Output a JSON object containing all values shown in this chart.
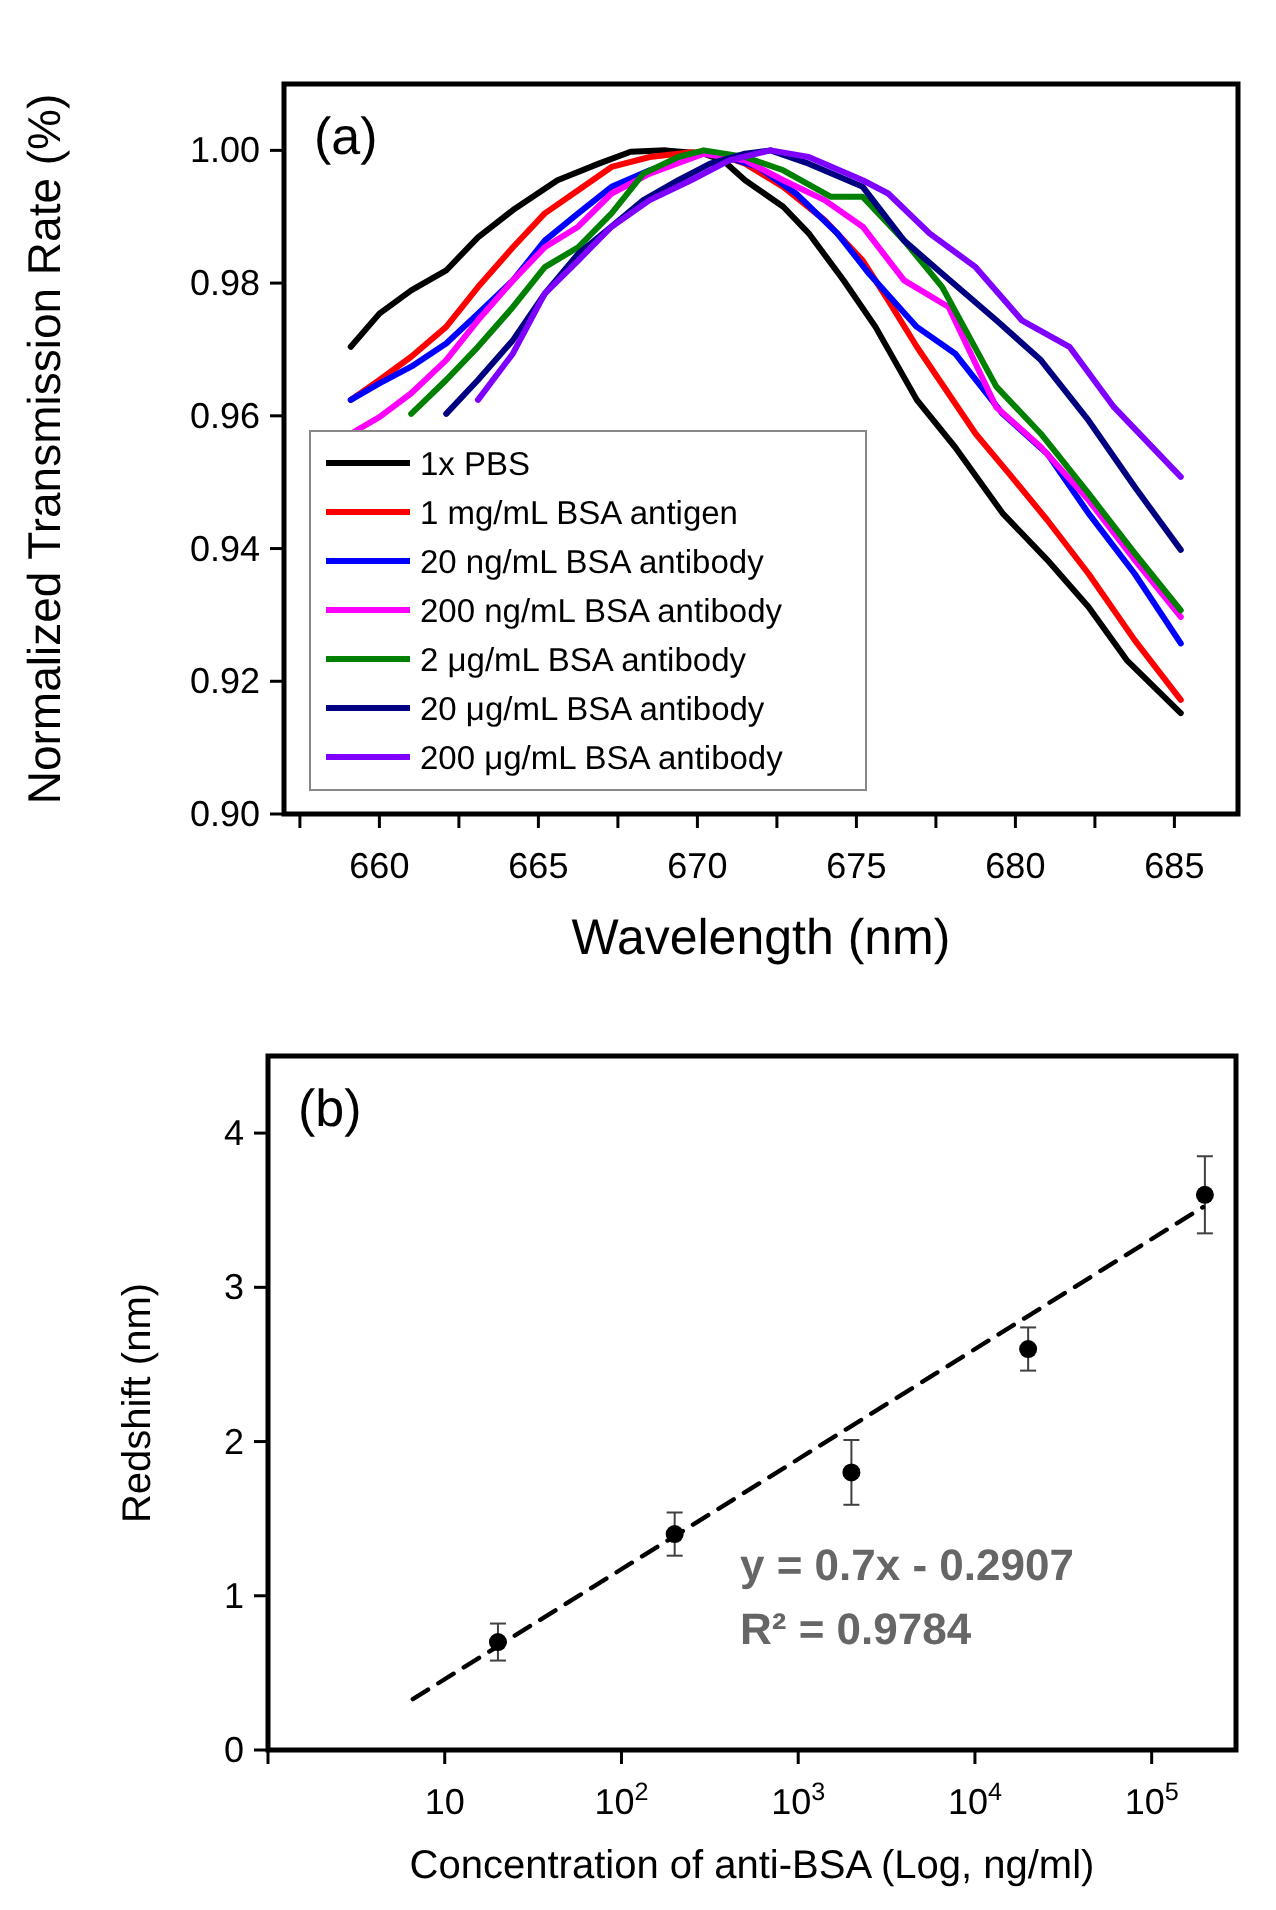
{
  "chart_data": [
    {
      "type": "line",
      "xlabel": "Wavelength (nm)",
      "ylabel": "Normalized Transmission Rate (%)",
      "annotations": [
        "(a)"
      ],
      "xlim": [
        657,
        687
      ],
      "ylim": [
        0.9,
        1.01
      ],
      "xticks": [
        {
          "value": 657.5,
          "label": null
        },
        660,
        {
          "value": 662.5,
          "label": null
        },
        665,
        {
          "value": 667.5,
          "label": null
        },
        670,
        {
          "value": 672.5,
          "label": null
        },
        675,
        {
          "value": 677.5,
          "label": null
        },
        680,
        {
          "value": 682.5,
          "label": null
        },
        685
      ],
      "yticks": [
        {
          "value": 0.9,
          "label": "0.90"
        },
        0.92,
        0.94,
        0.96,
        0.98,
        {
          "value": 1,
          "label": "1.00"
        }
      ],
      "grid": false,
      "legend": "bottom left",
      "line_style": "solid",
      "marker": "none",
      "series": [
        {
          "name": "1x PBS",
          "color": "#000000",
          "x": [
            659.1,
            660,
            661,
            662.1,
            663.1,
            664.2,
            665.6,
            666.9,
            667.9,
            669,
            670.2,
            670.8,
            671.5,
            672.7,
            673.5,
            674.6,
            675.6,
            676.9,
            678.1,
            679.6,
            681,
            682.3,
            683.5,
            685.2
          ],
          "values": [
            0.9704,
            0.9754,
            0.9789,
            0.9819,
            0.9869,
            0.991,
            0.9955,
            0.998,
            0.9998,
            1,
            0.9995,
            0.9985,
            0.9955,
            0.9915,
            0.9875,
            0.9804,
            0.9734,
            0.9624,
            0.9553,
            0.9453,
            0.9383,
            0.9312,
            0.9232,
            0.9152
          ]
        },
        {
          "name": "1 mg/mL BSA antigen",
          "color": "#ff0000",
          "x": [
            659.1,
            660,
            661,
            662.1,
            663.1,
            664.2,
            665.2,
            666.25,
            667.3,
            668.5,
            669.8,
            670.6,
            671.5,
            672.7,
            674,
            675.2,
            676,
            676.9,
            678.75,
            679.8,
            681,
            682.3,
            683.75,
            685.2
          ],
          "values": [
            0.9624,
            0.9654,
            0.9689,
            0.9734,
            0.9794,
            0.9854,
            0.9905,
            0.994,
            0.9975,
            0.999,
            0.9997,
            0.9995,
            0.998,
            0.9945,
            0.9895,
            0.9834,
            0.9774,
            0.9704,
            0.9573,
            0.9513,
            0.9443,
            0.9362,
            0.9262,
            0.9172
          ]
        },
        {
          "name": "20 ng/mL BSA antibody",
          "color": "#0000ff",
          "x": [
            659.1,
            660,
            661,
            662.1,
            663.1,
            664.2,
            665.2,
            666.25,
            667.3,
            668.5,
            670,
            670.6,
            671.9,
            673.1,
            674.4,
            675.4,
            676.9,
            678.1,
            679.6,
            681,
            682.3,
            683.75,
            685.2
          ],
          "values": [
            0.9624,
            0.9649,
            0.9674,
            0.9709,
            0.9754,
            0.9804,
            0.9864,
            0.9905,
            0.9945,
            0.997,
            0.9995,
            0.9995,
            0.9975,
            0.9935,
            0.9875,
            0.9814,
            0.9734,
            0.9694,
            0.9603,
            0.9543,
            0.9453,
            0.9362,
            0.9257
          ]
        },
        {
          "name": "200 ng/mL BSA antibody",
          "color": "#ff00ff",
          "x": [
            659.1,
            660,
            661,
            662.1,
            663.1,
            664.2,
            665.2,
            666.25,
            667.3,
            668.5,
            670.2,
            671.5,
            672.7,
            674,
            675.2,
            676.5,
            677.9,
            679.4,
            680.8,
            682.3,
            683.75,
            685.2
          ],
          "values": [
            0.9573,
            0.9598,
            0.9634,
            0.9684,
            0.9744,
            0.9804,
            0.9854,
            0.9885,
            0.9935,
            0.9965,
            0.9995,
            0.9985,
            0.9955,
            0.9925,
            0.9885,
            0.9804,
            0.9764,
            0.9613,
            0.9553,
            0.9473,
            0.9383,
            0.9297
          ]
        },
        {
          "name": "2 μg/mL BSA antibody",
          "color": "#008000",
          "x": [
            661,
            662.1,
            663.1,
            664.2,
            665.2,
            666.25,
            667.3,
            668.3,
            669.4,
            670.2,
            671.5,
            672.7,
            674.2,
            675.2,
            676.5,
            677.7,
            679.4,
            680.8,
            682.3,
            683.75,
            685.2
          ],
          "values": [
            0.9603,
            0.9654,
            0.9704,
            0.9764,
            0.9824,
            0.9854,
            0.9905,
            0.9965,
            0.999,
            1,
            0.999,
            0.997,
            0.993,
            0.993,
            0.9864,
            0.9794,
            0.9644,
            0.9573,
            0.9483,
            0.9393,
            0.9307
          ]
        },
        {
          "name": "20 μg/mL BSA antibody",
          "color": "#000080",
          "x": [
            662.1,
            663.1,
            664.2,
            665.2,
            666.25,
            667.3,
            668.3,
            669.4,
            670.4,
            671.5,
            672.3,
            673.5,
            675.2,
            676.5,
            677.7,
            679.4,
            680.8,
            682.3,
            683.75,
            685.2
          ],
          "values": [
            0.9603,
            0.9654,
            0.9714,
            0.9784,
            0.9844,
            0.9885,
            0.9925,
            0.9955,
            0.998,
            0.9995,
            1,
            0.998,
            0.9945,
            0.9864,
            0.9814,
            0.9744,
            0.9684,
            0.9593,
            0.9493,
            0.9398
          ]
        },
        {
          "name": "200 μg/mL BSA antibody",
          "color": "#8000ff",
          "x": [
            663.1,
            664.2,
            665.2,
            666.25,
            667.3,
            668.5,
            669.8,
            671,
            672.3,
            673.5,
            675.2,
            676,
            677.3,
            678.75,
            680.2,
            681.7,
            683.1,
            685.2
          ],
          "values": [
            0.9624,
            0.9694,
            0.9784,
            0.9834,
            0.9885,
            0.9925,
            0.9955,
            0.9985,
            1,
            0.999,
            0.9955,
            0.9935,
            0.9875,
            0.9824,
            0.9744,
            0.9704,
            0.9613,
            0.9508
          ]
        }
      ]
    },
    {
      "type": "scatter",
      "xlabel": "Concentration of anti-BSA (Log, ng/ml)",
      "ylabel": "Redshift (nm)",
      "annotations": [
        "(b)",
        "y = 0.7x - 0.2907",
        "R² = 0.9784"
      ],
      "log": "x",
      "xlim": [
        1,
        300000
      ],
      "ylim": [
        0,
        4.5
      ],
      "xticks": [
        {
          "value": 1,
          "label": null
        },
        10,
        {
          "value": 100,
          "label": "10$^{2}$"
        },
        {
          "value": 1000,
          "label": "10$^{3}$"
        },
        {
          "value": 10000,
          "label": "10$^{4}$"
        },
        {
          "value": 100000,
          "label": "10$^{5}$"
        }
      ],
      "yticks": [
        0,
        1,
        2,
        3,
        4
      ],
      "grid": false,
      "legend": false,
      "series": [
        {
          "color": "#000000",
          "marker": "circle",
          "x": [
            20,
            200,
            2000,
            20000,
            200000
          ],
          "values": [
            0.7,
            1.4,
            1.8,
            2.6,
            3.6
          ],
          "errors": [
            0.12,
            0.14,
            0.21,
            0.14,
            0.25
          ]
        },
        {
          "type": "line",
          "color": "#000000",
          "line_style": "dashed",
          "marker": "none",
          "x": [
            6.6,
            195000
          ],
          "values": [
            0.33,
            3.52
          ]
        }
      ]
    }
  ]
}
